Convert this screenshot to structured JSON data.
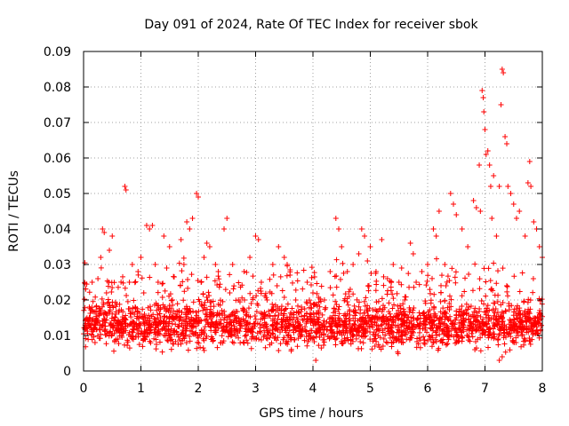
{
  "chart_data": {
    "type": "scatter",
    "title": "Day 091 of 2024, Rate Of TEC Index for receiver sbok",
    "xlabel": "GPS time / hours",
    "ylabel": "ROTI / TECUs",
    "xlim": [
      0,
      8
    ],
    "ylim": [
      0,
      0.09
    ],
    "x_ticks": [
      0,
      1,
      2,
      3,
      4,
      5,
      6,
      7,
      8
    ],
    "x_tick_labels": [
      "0",
      "1",
      "2",
      "3",
      "4",
      "5",
      "6",
      "7",
      "8"
    ],
    "y_ticks": [
      0,
      0.01,
      0.02,
      0.03,
      0.04,
      0.05,
      0.06,
      0.07,
      0.08,
      0.09
    ],
    "y_tick_labels": [
      "0",
      "0.01",
      "0.02",
      "0.03",
      "0.04",
      "0.05",
      "0.06",
      "0.07",
      "0.08",
      "0.09"
    ],
    "grid": true,
    "marker": "+",
    "series_color": "#ff0000",
    "series": [
      {
        "name": "ROTI",
        "points": [
          [
            0.05,
            0.012
          ],
          [
            0.1,
            0.018
          ],
          [
            0.15,
            0.025
          ],
          [
            0.2,
            0.008
          ],
          [
            0.25,
            0.026
          ],
          [
            0.3,
            0.032
          ],
          [
            0.33,
            0.04
          ],
          [
            0.36,
            0.039
          ],
          [
            0.4,
            0.022
          ],
          [
            0.45,
            0.034
          ],
          [
            0.5,
            0.038
          ],
          [
            0.55,
            0.015
          ],
          [
            0.6,
            0.009
          ],
          [
            0.68,
            0.012
          ],
          [
            0.72,
            0.052
          ],
          [
            0.74,
            0.051
          ],
          [
            0.8,
            0.025
          ],
          [
            0.85,
            0.03
          ],
          [
            0.9,
            0.018
          ],
          [
            0.95,
            0.028
          ],
          [
            1.0,
            0.032
          ],
          [
            1.05,
            0.022
          ],
          [
            1.1,
            0.041
          ],
          [
            1.15,
            0.04
          ],
          [
            1.2,
            0.041
          ],
          [
            1.25,
            0.03
          ],
          [
            1.3,
            0.025
          ],
          [
            1.4,
            0.038
          ],
          [
            1.45,
            0.029
          ],
          [
            1.5,
            0.035
          ],
          [
            1.55,
            0.02
          ],
          [
            1.6,
            0.015
          ],
          [
            1.7,
            0.037
          ],
          [
            1.75,
            0.03
          ],
          [
            1.8,
            0.042
          ],
          [
            1.85,
            0.04
          ],
          [
            1.9,
            0.043
          ],
          [
            1.97,
            0.05
          ],
          [
            2.0,
            0.049
          ],
          [
            2.05,
            0.025
          ],
          [
            2.1,
            0.032
          ],
          [
            2.15,
            0.036
          ],
          [
            2.2,
            0.035
          ],
          [
            2.3,
            0.03
          ],
          [
            2.35,
            0.028
          ],
          [
            2.45,
            0.04
          ],
          [
            2.5,
            0.043
          ],
          [
            2.55,
            0.022
          ],
          [
            2.6,
            0.03
          ],
          [
            2.7,
            0.02
          ],
          [
            2.8,
            0.028
          ],
          [
            2.9,
            0.032
          ],
          [
            3.0,
            0.038
          ],
          [
            3.05,
            0.037
          ],
          [
            3.1,
            0.025
          ],
          [
            3.2,
            0.02
          ],
          [
            3.3,
            0.03
          ],
          [
            3.4,
            0.035
          ],
          [
            3.5,
            0.032
          ],
          [
            3.55,
            0.03
          ],
          [
            3.6,
            0.027
          ],
          [
            3.7,
            0.02
          ],
          [
            3.8,
            0.018
          ],
          [
            3.9,
            0.025
          ],
          [
            4.0,
            0.022
          ],
          [
            4.1,
            0.012
          ],
          [
            4.2,
            0.02
          ],
          [
            4.3,
            0.028
          ],
          [
            4.4,
            0.043
          ],
          [
            4.45,
            0.04
          ],
          [
            4.5,
            0.035
          ],
          [
            4.6,
            0.028
          ],
          [
            4.7,
            0.03
          ],
          [
            4.8,
            0.033
          ],
          [
            4.85,
            0.04
          ],
          [
            4.9,
            0.038
          ],
          [
            4.95,
            0.031
          ],
          [
            5.0,
            0.035
          ],
          [
            5.1,
            0.028
          ],
          [
            5.2,
            0.037
          ],
          [
            5.3,
            0.026
          ],
          [
            5.4,
            0.03
          ],
          [
            5.5,
            0.025
          ],
          [
            5.6,
            0.02
          ],
          [
            5.7,
            0.036
          ],
          [
            5.75,
            0.033
          ],
          [
            5.8,
            0.025
          ],
          [
            5.9,
            0.028
          ],
          [
            6.0,
            0.03
          ],
          [
            6.1,
            0.04
          ],
          [
            6.15,
            0.038
          ],
          [
            6.2,
            0.045
          ],
          [
            6.3,
            0.03
          ],
          [
            6.4,
            0.05
          ],
          [
            6.45,
            0.047
          ],
          [
            6.5,
            0.044
          ],
          [
            6.6,
            0.04
          ],
          [
            6.7,
            0.035
          ],
          [
            6.8,
            0.048
          ],
          [
            6.85,
            0.046
          ],
          [
            6.9,
            0.058
          ],
          [
            6.92,
            0.045
          ],
          [
            6.95,
            0.079
          ],
          [
            6.97,
            0.077
          ],
          [
            6.98,
            0.073
          ],
          [
            7.0,
            0.068
          ],
          [
            7.02,
            0.061
          ],
          [
            7.05,
            0.062
          ],
          [
            7.08,
            0.058
          ],
          [
            7.1,
            0.052
          ],
          [
            7.12,
            0.043
          ],
          [
            7.15,
            0.055
          ],
          [
            7.2,
            0.038
          ],
          [
            7.25,
            0.052
          ],
          [
            7.28,
            0.075
          ],
          [
            7.3,
            0.085
          ],
          [
            7.32,
            0.084
          ],
          [
            7.35,
            0.066
          ],
          [
            7.38,
            0.064
          ],
          [
            7.4,
            0.052
          ],
          [
            7.45,
            0.05
          ],
          [
            7.5,
            0.047
          ],
          [
            7.55,
            0.043
          ],
          [
            7.6,
            0.045
          ],
          [
            7.7,
            0.038
          ],
          [
            7.75,
            0.053
          ],
          [
            7.78,
            0.059
          ],
          [
            7.8,
            0.052
          ],
          [
            7.85,
            0.042
          ],
          [
            7.9,
            0.04
          ],
          [
            7.95,
            0.035
          ],
          [
            8.0,
            0.032
          ],
          [
            7.3,
            0.004
          ],
          [
            7.25,
            0.003
          ],
          [
            4.05,
            0.003
          ]
        ],
        "dense_band": {
          "x_range": [
            0,
            8
          ],
          "typical_range": [
            0.004,
            0.02
          ],
          "approx_count": 2400
        }
      }
    ]
  }
}
